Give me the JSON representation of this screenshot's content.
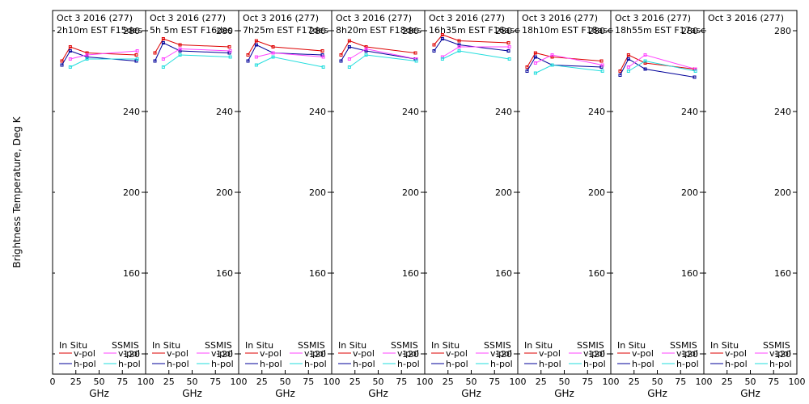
{
  "chart_data": {
    "type": "line",
    "ylabel": "Brightness Temperature, Deg K",
    "xlabel": "GHz",
    "xlim": [
      0,
      100
    ],
    "ylim": [
      110,
      290
    ],
    "x_ticks": [
      0,
      25,
      50,
      75,
      100
    ],
    "x_tick_labels_first": [
      "0",
      "25",
      "50",
      "75",
      "100"
    ],
    "x_tick_labels_rest": [
      "25",
      "50",
      "75",
      "100"
    ],
    "y_ticks": [
      120,
      160,
      200,
      240,
      280
    ],
    "legend_headers": [
      "In Situ",
      "SSMIS"
    ],
    "legend_rows": [
      "v-pol",
      "h-pol"
    ],
    "colors": {
      "insitu_v": "#dd0000",
      "insitu_h": "#000099",
      "ssmis_v": "#ff44ff",
      "ssmis_h": "#22dddd"
    },
    "panels": [
      {
        "title_line1": "Oct  3 2016 (277)",
        "title_line2": "2h10m  EST  F15des",
        "series": {
          "insitu_v": [
            [
              10,
              265
            ],
            [
              19,
              272
            ],
            [
              37,
              269
            ],
            [
              90,
              268
            ]
          ],
          "insitu_h": [
            [
              10,
              263
            ],
            [
              19,
              270
            ],
            [
              37,
              267
            ],
            [
              90,
              265
            ]
          ],
          "ssmis_v": [
            [
              19,
              266
            ],
            [
              37,
              268
            ],
            [
              91,
              270
            ]
          ],
          "ssmis_h": [
            [
              19,
              262
            ],
            [
              37,
              266
            ],
            [
              91,
              266
            ]
          ]
        }
      },
      {
        "title_line1": "Oct  3 2016 (277)",
        "title_line2": "5h 5m  EST  F16des",
        "series": {
          "insitu_v": [
            [
              10,
              269
            ],
            [
              19,
              276
            ],
            [
              37,
              273
            ],
            [
              90,
              272
            ]
          ],
          "insitu_h": [
            [
              10,
              265
            ],
            [
              19,
              274
            ],
            [
              37,
              270
            ],
            [
              90,
              269
            ]
          ],
          "ssmis_v": [
            [
              19,
              266
            ],
            [
              37,
              271
            ],
            [
              91,
              270
            ]
          ],
          "ssmis_h": [
            [
              19,
              262
            ],
            [
              37,
              268
            ],
            [
              91,
              267
            ]
          ]
        }
      },
      {
        "title_line1": "Oct  3 2016 (277)",
        "title_line2": "7h25m  EST  F17des",
        "series": {
          "insitu_v": [
            [
              10,
              268
            ],
            [
              19,
              275
            ],
            [
              37,
              272
            ],
            [
              90,
              270
            ]
          ],
          "insitu_h": [
            [
              10,
              265
            ],
            [
              19,
              273
            ],
            [
              37,
              269
            ],
            [
              90,
              268
            ]
          ],
          "ssmis_v": [
            [
              19,
              267
            ],
            [
              37,
              269
            ],
            [
              91,
              267
            ]
          ],
          "ssmis_h": [
            [
              19,
              263
            ],
            [
              37,
              267
            ],
            [
              91,
              262
            ]
          ]
        }
      },
      {
        "title_line1": "Oct  3 2016 (277)",
        "title_line2": "8h20m  EST  F18des",
        "series": {
          "insitu_v": [
            [
              10,
              268
            ],
            [
              19,
              275
            ],
            [
              37,
              272
            ],
            [
              90,
              269
            ]
          ],
          "insitu_h": [
            [
              10,
              265
            ],
            [
              19,
              272
            ],
            [
              37,
              270
            ],
            [
              90,
              266
            ]
          ],
          "ssmis_v": [
            [
              19,
              266
            ],
            [
              37,
              271
            ],
            [
              91,
              266
            ]
          ],
          "ssmis_h": [
            [
              19,
              262
            ],
            [
              37,
              268
            ],
            [
              91,
              265
            ]
          ]
        }
      },
      {
        "title_line1": "Oct  3 2016 (277)",
        "title_line2": "16h35m  EST  F16asc",
        "series": {
          "insitu_v": [
            [
              10,
              273
            ],
            [
              19,
              278
            ],
            [
              37,
              275
            ],
            [
              90,
              274
            ]
          ],
          "insitu_h": [
            [
              10,
              270
            ],
            [
              19,
              276
            ],
            [
              37,
              273
            ],
            [
              90,
              270
            ]
          ],
          "ssmis_v": [
            [
              19,
              267
            ],
            [
              37,
              272
            ],
            [
              91,
              272
            ]
          ],
          "ssmis_h": [
            [
              19,
              266
            ],
            [
              37,
              270
            ],
            [
              91,
              266
            ]
          ]
        }
      },
      {
        "title_line1": "Oct  3 2016 (277)",
        "title_line2": "18h10m  EST  F18asc",
        "series": {
          "insitu_v": [
            [
              10,
              262
            ],
            [
              19,
              269
            ],
            [
              37,
              267
            ],
            [
              90,
              265
            ]
          ],
          "insitu_h": [
            [
              10,
              260
            ],
            [
              19,
              267
            ],
            [
              37,
              263
            ],
            [
              90,
              262
            ]
          ],
          "ssmis_v": [
            [
              19,
              264
            ],
            [
              37,
              268
            ],
            [
              91,
              263
            ]
          ],
          "ssmis_h": [
            [
              19,
              259
            ],
            [
              37,
              263
            ],
            [
              91,
              260
            ]
          ]
        }
      },
      {
        "title_line1": "Oct  3 2016 (277)",
        "title_line2": "18h55m  EST  F17asc",
        "series": {
          "insitu_v": [
            [
              10,
              260
            ],
            [
              19,
              268
            ],
            [
              37,
              264
            ],
            [
              90,
              261
            ]
          ],
          "insitu_h": [
            [
              10,
              258
            ],
            [
              19,
              266
            ],
            [
              37,
              261
            ],
            [
              90,
              257
            ]
          ],
          "ssmis_v": [
            [
              19,
              262
            ],
            [
              37,
              268
            ],
            [
              91,
              261
            ]
          ],
          "ssmis_h": [
            [
              19,
              260
            ],
            [
              37,
              265
            ],
            [
              91,
              260
            ]
          ]
        }
      },
      {
        "title_line1": "Oct  3 2016 (277)",
        "title_line2": "",
        "series": {}
      }
    ]
  }
}
